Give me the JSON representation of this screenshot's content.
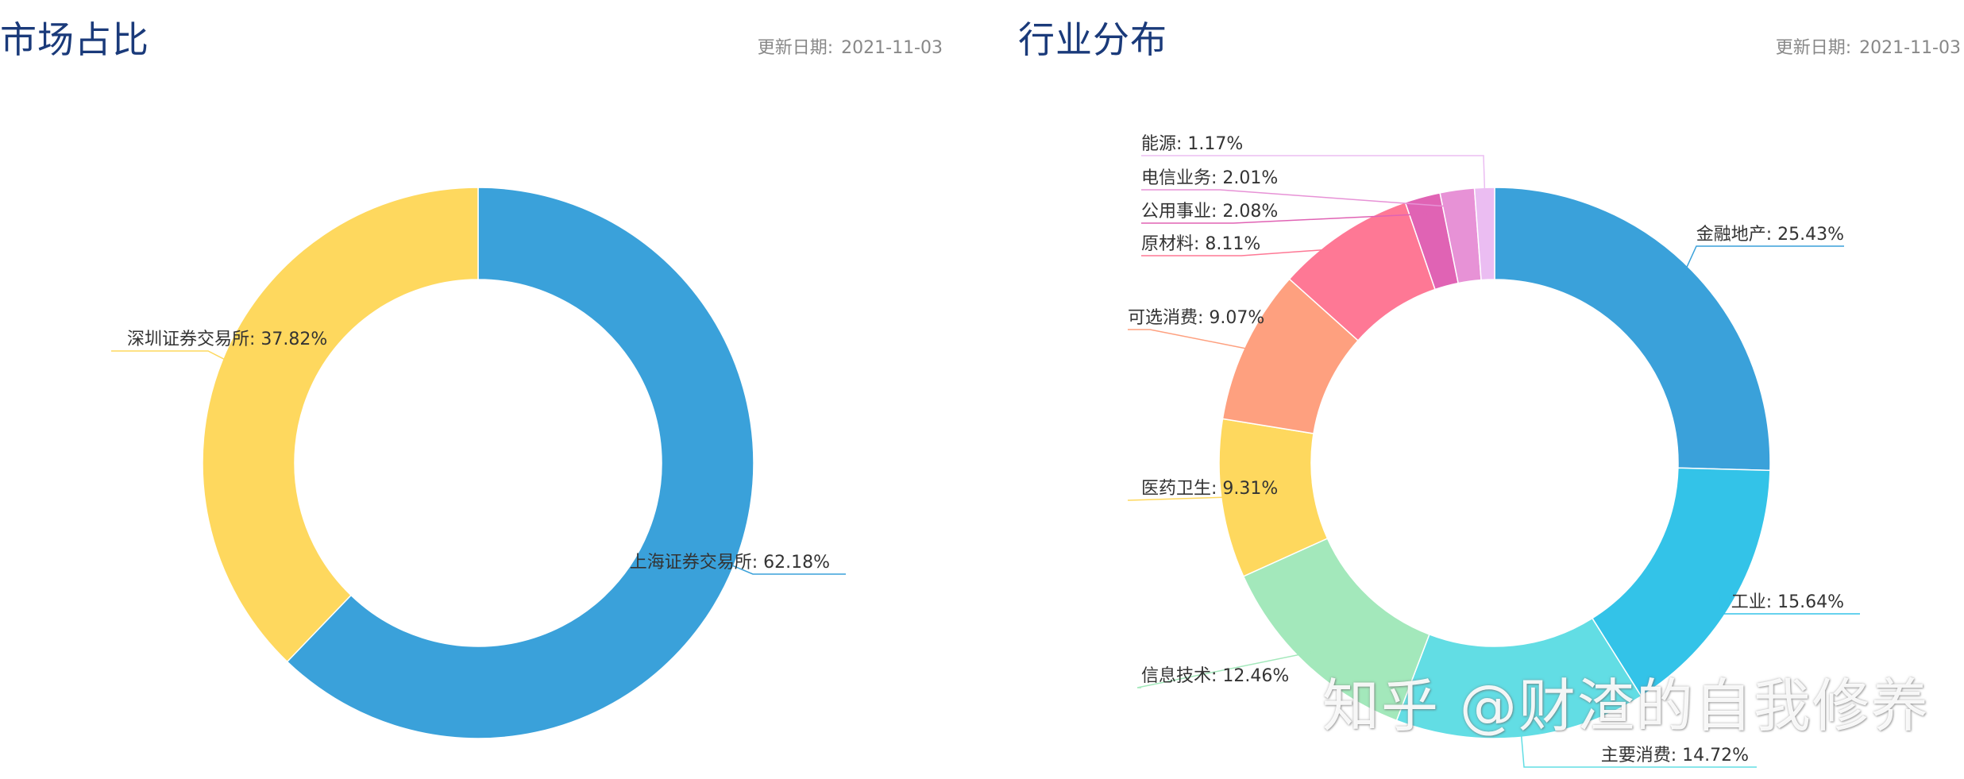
{
  "market": {
    "title": "市场占比",
    "date_label": "更新日期:",
    "date_value": "2021-11-03"
  },
  "industry": {
    "title": "行业分布",
    "date_label": "更新日期:",
    "date_value": "2021-11-03"
  },
  "watermark": "知乎 @财渣的自我修养",
  "chart_data": [
    {
      "type": "pie",
      "variant": "donut",
      "title": "市场占比",
      "categories": [
        "上海证券交易所",
        "深圳证券交易所"
      ],
      "values": [
        62.18,
        37.82
      ],
      "unit": "%",
      "labels": [
        "上海证券交易所: 62.18%",
        "深圳证券交易所: 37.82%"
      ],
      "colors": [
        "#3aa1da",
        "#fed85e"
      ],
      "legend": "none"
    },
    {
      "type": "pie",
      "variant": "donut",
      "title": "行业分布",
      "categories": [
        "金融地产",
        "工业",
        "主要消费",
        "信息技术",
        "医药卫生",
        "可选消费",
        "原材料",
        "公用事业",
        "电信业务",
        "能源"
      ],
      "values": [
        25.43,
        15.64,
        14.72,
        12.46,
        9.31,
        9.07,
        8.11,
        2.08,
        2.01,
        1.17
      ],
      "unit": "%",
      "labels": [
        "金融地产: 25.43%",
        "工业: 15.64%",
        "主要消费: 14.72%",
        "信息技术: 12.46%",
        "医药卫生: 9.31%",
        "可选消费: 9.07%",
        "原材料: 8.11%",
        "公用事业: 2.08%",
        "电信业务: 2.01%",
        "能源: 1.17%"
      ],
      "colors": [
        "#3aa1da",
        "#33c3e8",
        "#62dde4",
        "#a3e8bb",
        "#fed85e",
        "#fea07f",
        "#fe7895",
        "#e063b4",
        "#e792d6",
        "#ebbdf2"
      ],
      "legend": "none"
    }
  ]
}
